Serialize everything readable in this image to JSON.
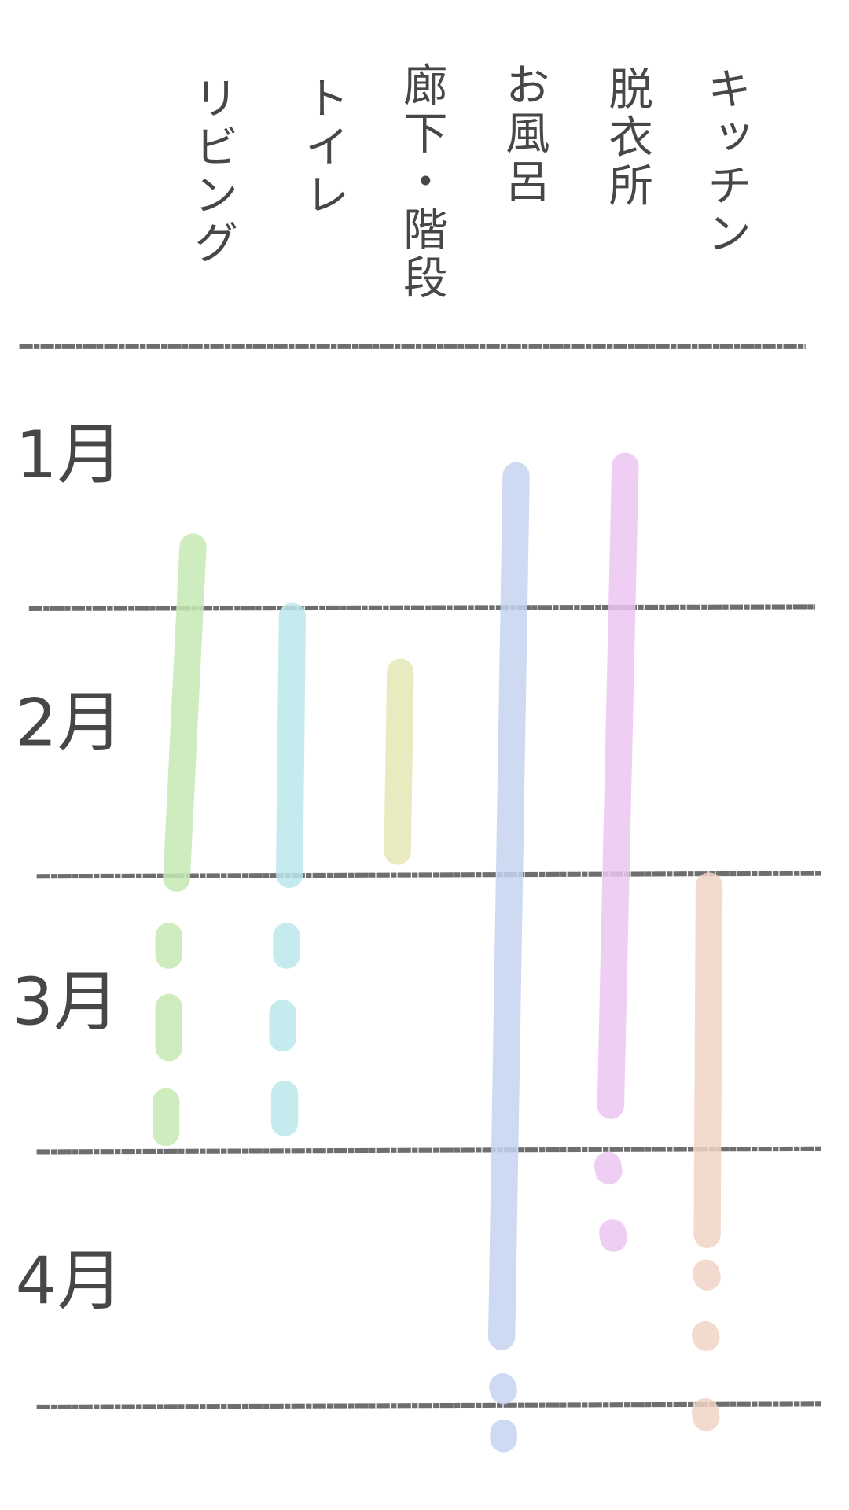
{
  "columns": [
    "リビング",
    "トイレ",
    "廊下・階段",
    "お風呂",
    "脱衣所",
    "キッチン"
  ],
  "months": [
    "1月",
    "2月",
    "3月",
    "4月"
  ]
}
